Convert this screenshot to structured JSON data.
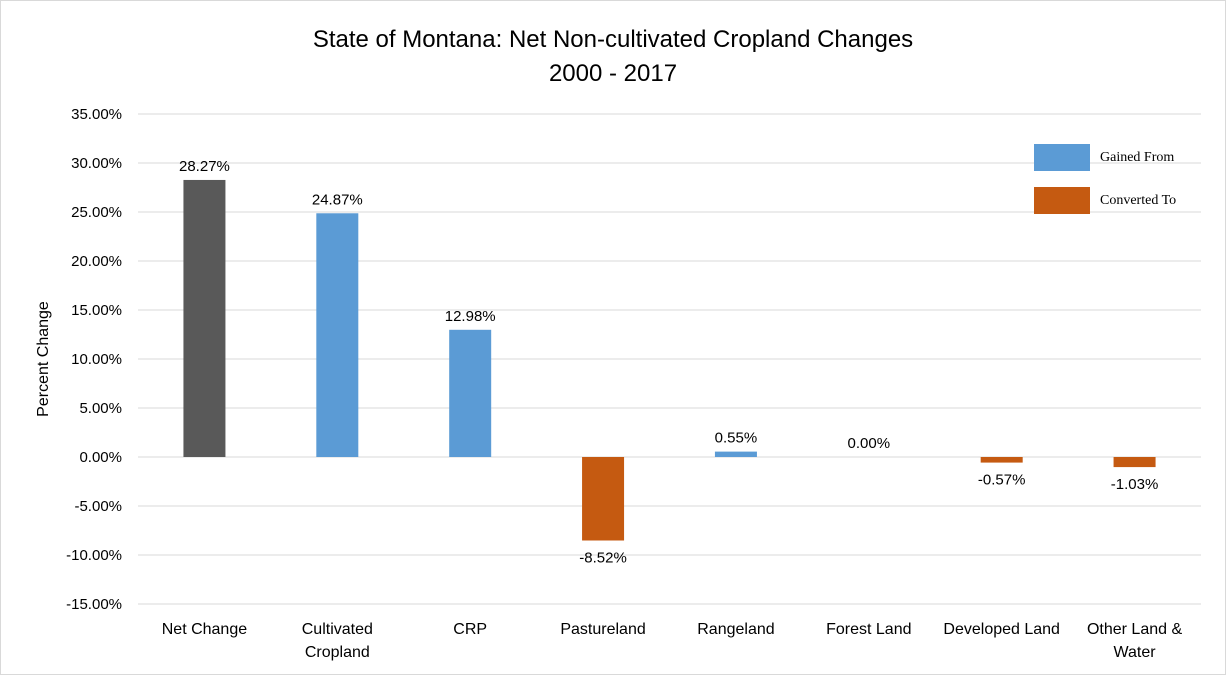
{
  "chart_data": {
    "type": "bar",
    "title_lines": [
      "State of Montana: Net Non-cultivated Cropland Changes",
      "2000 - 2017"
    ],
    "xlabel": "",
    "ylabel": "Percent Change",
    "ylim": [
      -15,
      35
    ],
    "ytick_step": 5,
    "ytick_labels": [
      "35.00%",
      "30.00%",
      "25.00%",
      "20.00%",
      "15.00%",
      "10.00%",
      "5.00%",
      "0.00%",
      "-5.00%",
      "-10.00%",
      "-15.00%"
    ],
    "grid": true,
    "legend_position": "top-right",
    "categories": [
      [
        "Net Change"
      ],
      [
        "Cultivated",
        "Cropland"
      ],
      [
        "CRP"
      ],
      [
        "Pastureland"
      ],
      [
        "Rangeland"
      ],
      [
        "Forest Land"
      ],
      [
        "Developed Land"
      ],
      [
        "Other Land &",
        "Water"
      ]
    ],
    "values": [
      28.27,
      24.87,
      12.98,
      -8.52,
      0.55,
      0.0,
      -0.57,
      -1.03
    ],
    "value_labels": [
      "28.27%",
      "24.87%",
      "12.98%",
      "-8.52%",
      "0.55%",
      "0.00%",
      "-0.57%",
      "-1.03%"
    ],
    "bar_groups": [
      "net",
      "gained",
      "gained",
      "converted",
      "gained",
      "gained",
      "converted",
      "converted"
    ],
    "colors": {
      "net": "#595959",
      "gained": "#5b9bd5",
      "converted": "#c55a11"
    },
    "legend": [
      {
        "group": "gained",
        "label": "Gained From"
      },
      {
        "group": "converted",
        "label": "Converted To"
      }
    ]
  }
}
